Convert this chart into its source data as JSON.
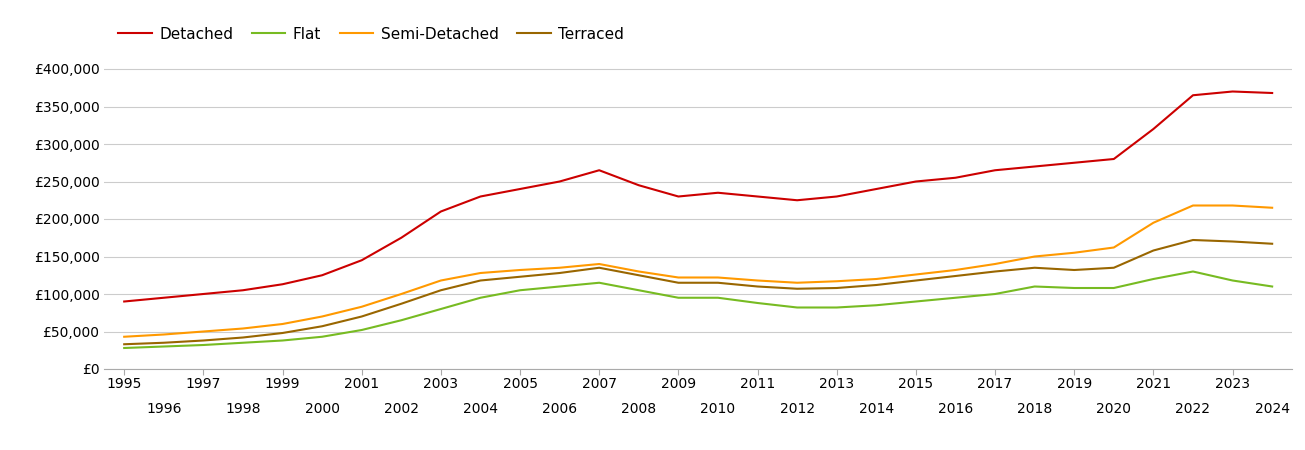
{
  "title": "",
  "years": [
    1995,
    1996,
    1997,
    1998,
    1999,
    2000,
    2001,
    2002,
    2003,
    2004,
    2005,
    2006,
    2007,
    2008,
    2009,
    2010,
    2011,
    2012,
    2013,
    2014,
    2015,
    2016,
    2017,
    2018,
    2019,
    2020,
    2021,
    2022,
    2023,
    2024
  ],
  "detached": [
    90000,
    95000,
    100000,
    105000,
    113000,
    125000,
    145000,
    175000,
    210000,
    230000,
    240000,
    250000,
    265000,
    245000,
    230000,
    235000,
    230000,
    225000,
    230000,
    240000,
    250000,
    255000,
    265000,
    270000,
    275000,
    280000,
    320000,
    365000,
    370000,
    368000
  ],
  "flat": [
    28000,
    30000,
    32000,
    35000,
    38000,
    43000,
    52000,
    65000,
    80000,
    95000,
    105000,
    110000,
    115000,
    105000,
    95000,
    95000,
    88000,
    82000,
    82000,
    85000,
    90000,
    95000,
    100000,
    110000,
    108000,
    108000,
    120000,
    130000,
    118000,
    110000
  ],
  "semi_detached": [
    43000,
    46000,
    50000,
    54000,
    60000,
    70000,
    83000,
    100000,
    118000,
    128000,
    132000,
    135000,
    140000,
    130000,
    122000,
    122000,
    118000,
    115000,
    117000,
    120000,
    126000,
    132000,
    140000,
    150000,
    155000,
    162000,
    195000,
    218000,
    218000,
    215000
  ],
  "terraced": [
    33000,
    35000,
    38000,
    42000,
    48000,
    57000,
    70000,
    87000,
    105000,
    118000,
    123000,
    128000,
    135000,
    125000,
    115000,
    115000,
    110000,
    107000,
    108000,
    112000,
    118000,
    124000,
    130000,
    135000,
    132000,
    135000,
    158000,
    172000,
    170000,
    167000
  ],
  "line_colors": {
    "detached": "#cc0000",
    "flat": "#77bb22",
    "semi_detached": "#ff9900",
    "terraced": "#996600"
  },
  "ylim": [
    0,
    420000
  ],
  "yticks": [
    0,
    50000,
    100000,
    150000,
    200000,
    250000,
    300000,
    350000,
    400000
  ],
  "background_color": "#ffffff",
  "grid_color": "#cccccc",
  "tick_fontsize": 10
}
